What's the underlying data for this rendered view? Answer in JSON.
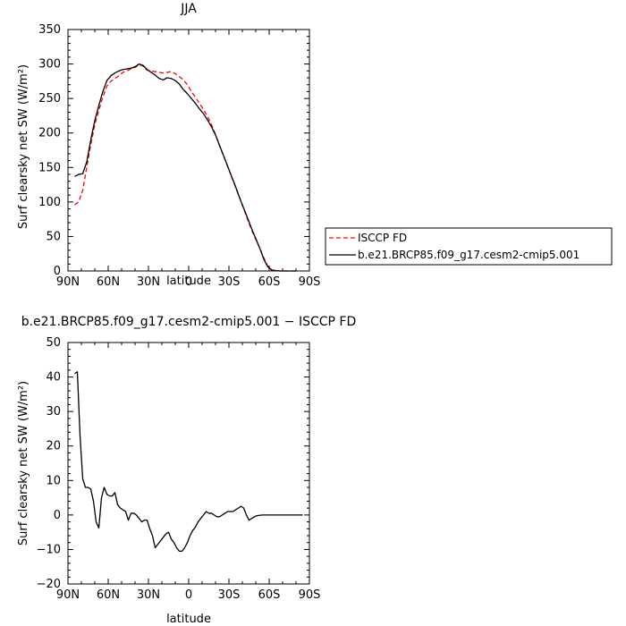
{
  "chart_data": [
    {
      "type": "line",
      "title": "JJA",
      "xlabel": "latitude",
      "ylabel": "Surf clearsky net SW (W/m²)",
      "xlim": [
        90,
        -90
      ],
      "ylim": [
        0,
        350
      ],
      "x_ticks": [
        "90N",
        "60N",
        "30N",
        "0",
        "30S",
        "60S",
        "90S"
      ],
      "y_ticks": [
        "0",
        "50",
        "100",
        "150",
        "200",
        "250",
        "300",
        "350"
      ],
      "legend": {
        "placement": "outside-right"
      },
      "series": [
        {
          "name": "ISCCP FD",
          "color": "#ff0000",
          "dash": "dashed",
          "x": [
            85,
            82,
            79,
            76,
            73,
            70,
            67,
            64,
            61,
            58,
            55,
            52,
            49,
            46,
            43,
            40,
            37,
            34,
            31,
            28,
            25,
            22,
            19,
            16,
            13,
            10,
            7,
            4,
            1,
            -2,
            -5,
            -8,
            -11,
            -14,
            -17,
            -20,
            -23,
            -26,
            -29,
            -32,
            -35,
            -38,
            -41,
            -44,
            -47,
            -50,
            -53,
            -56,
            -59,
            -62,
            -65,
            -68,
            -71,
            -74,
            -77,
            -80
          ],
          "y": [
            96,
            100,
            117,
            150,
            183,
            212,
            233,
            252,
            268,
            275,
            279,
            283,
            288,
            290,
            293,
            295,
            299,
            297,
            291,
            290,
            289,
            288,
            287,
            288,
            289,
            286,
            282,
            277,
            270,
            260,
            252,
            243,
            234,
            224,
            212,
            198,
            182,
            167,
            152,
            136,
            121,
            106,
            90,
            74,
            59,
            46,
            33,
            19,
            7,
            1,
            0.5,
            0,
            0,
            0,
            0,
            0
          ]
        },
        {
          "name": "b.e21.BRCP85.f09_g17.cesm2-cmip5.001",
          "color": "#000000",
          "dash": "solid",
          "x": [
            85,
            82,
            79,
            76,
            73,
            70,
            67,
            64,
            61,
            58,
            55,
            52,
            49,
            46,
            43,
            40,
            37,
            34,
            31,
            28,
            25,
            22,
            19,
            16,
            13,
            10,
            7,
            4,
            1,
            -2,
            -5,
            -8,
            -11,
            -14,
            -17,
            -20,
            -23,
            -26,
            -29,
            -32,
            -35,
            -38,
            -41,
            -44,
            -47,
            -50,
            -53,
            -56,
            -59,
            -62,
            -65,
            -68,
            -71,
            -74,
            -77,
            -80
          ],
          "y": [
            137,
            140,
            141,
            158,
            190,
            218,
            240,
            260,
            276,
            283,
            287,
            290,
            292,
            293,
            294,
            296,
            300,
            298,
            292,
            288,
            284,
            279,
            277,
            280,
            279,
            276,
            271,
            263,
            257,
            250,
            243,
            235,
            228,
            219,
            209,
            197,
            182,
            167,
            152,
            137,
            122,
            106,
            91,
            76,
            61,
            47,
            33,
            17,
            6,
            1.5,
            0.5,
            0,
            0,
            0,
            0,
            0
          ]
        }
      ]
    },
    {
      "type": "line",
      "title": "b.e21.BRCP85.f09_g17.cesm2-cmip5.001 − ISCCP FD",
      "xlabel": "latitude",
      "ylabel": "Surf clearsky net SW (W/m²)",
      "xlim": [
        90,
        -90
      ],
      "ylim": [
        -20,
        50
      ],
      "x_ticks": [
        "90N",
        "60N",
        "30N",
        "0",
        "30S",
        "60S",
        "90S"
      ],
      "y_ticks": [
        "−20",
        "−10",
        "0",
        "10",
        "20",
        "30",
        "40",
        "50"
      ],
      "series": [
        {
          "color": "#000000",
          "x": [
            85,
            83,
            81,
            79,
            77,
            75,
            73,
            71,
            69,
            67,
            65,
            63,
            61,
            59,
            57,
            55,
            53,
            51,
            49,
            47,
            45,
            43,
            41,
            39,
            37,
            35,
            33,
            31,
            29,
            27,
            25,
            23,
            21,
            19,
            17,
            15,
            13,
            11,
            9,
            7,
            5,
            3,
            1,
            -1,
            -3,
            -5,
            -7,
            -9,
            -11,
            -13,
            -15,
            -17,
            -19,
            -21,
            -23,
            -25,
            -27,
            -29,
            -31,
            -33,
            -35,
            -37,
            -39,
            -41,
            -43,
            -45,
            -47,
            -49,
            -51,
            -53,
            -55,
            -57,
            -59,
            -61,
            -63,
            -65,
            -67,
            -69,
            -71,
            -73,
            -75,
            -77,
            -79,
            -81,
            -83,
            -85
          ],
          "y": [
            41,
            41.5,
            23,
            10.5,
            8,
            8,
            7.5,
            4,
            -2,
            -3.8,
            5,
            8,
            6,
            5.5,
            5.5,
            6.5,
            3,
            2,
            1.5,
            1,
            -1.5,
            0.5,
            0.5,
            0,
            -1,
            -2,
            -1.5,
            -1.5,
            -4,
            -6,
            -9.5,
            -8.5,
            -7.5,
            -6.5,
            -5.5,
            -5,
            -7,
            -8,
            -9.5,
            -10.5,
            -10.5,
            -9.5,
            -8,
            -6,
            -4.5,
            -3.5,
            -2,
            -1,
            0,
            1,
            0.5,
            0.5,
            0,
            -0.5,
            -0.5,
            0,
            0.5,
            1,
            1,
            1,
            1.5,
            2,
            2.5,
            2,
            0,
            -1.5,
            -1,
            -0.5,
            -0.2,
            -0.1,
            0,
            0,
            0,
            0,
            0,
            0,
            0,
            0,
            0,
            0,
            0,
            0,
            0,
            0,
            0,
            0
          ]
        }
      ]
    }
  ]
}
